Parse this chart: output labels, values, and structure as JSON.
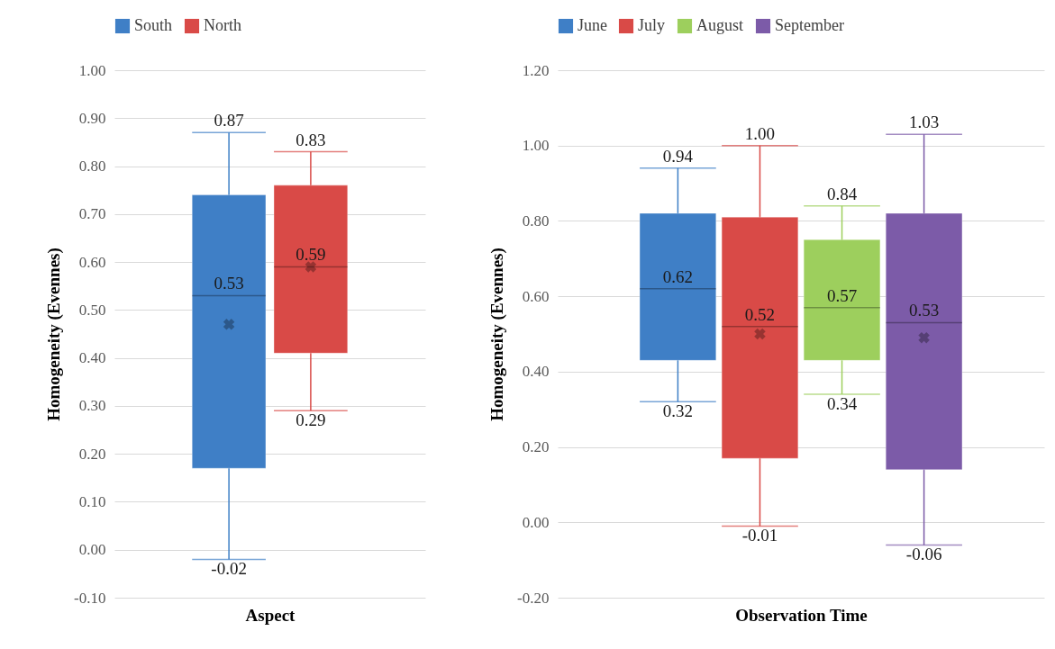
{
  "chart_data": [
    {
      "type": "box",
      "xlabel": "Aspect",
      "ylabel": "Homogeneity (Evennes)",
      "categories": [
        null
      ],
      "ylim": [
        -0.1,
        1.0
      ],
      "yticks": [
        {
          "value": -0.1,
          "label": "-0.10"
        },
        {
          "value": 0,
          "label": "0.00"
        },
        {
          "value": 0.1,
          "label": "0.10"
        },
        {
          "value": 0.2,
          "label": "0.20"
        },
        {
          "value": 0.3,
          "label": "0.30"
        },
        {
          "value": 0.4,
          "label": "0.40"
        },
        {
          "value": 0.5,
          "label": "0.50"
        },
        {
          "value": 0.6,
          "label": "0.60"
        },
        {
          "value": 0.7,
          "label": "0.70"
        },
        {
          "value": 0.8,
          "label": "0.80"
        },
        {
          "value": 0.9,
          "label": "0.90"
        },
        {
          "value": 1.0,
          "label": "1.00"
        }
      ],
      "grid": "y",
      "legend": "top",
      "series": [
        {
          "name": "South",
          "color": "#3f7fc6",
          "boxes": [
            {
              "low": -0.02,
              "q1": 0.17,
              "median": 0.53,
              "q3": 0.74,
              "high": 0.87,
              "mean": 0.47
            }
          ]
        },
        {
          "name": "North",
          "color": "#d94a47",
          "boxes": [
            {
              "low": 0.29,
              "q1": 0.41,
              "median": 0.59,
              "q3": 0.76,
              "high": 0.83,
              "mean": 0.59
            }
          ]
        }
      ],
      "annotations": [
        {
          "text": "0.87",
          "y": 0.87
        },
        {
          "text": "0.53",
          "y": 0.53
        },
        {
          "text": "-0.02",
          "y": -0.02
        },
        {
          "text": "0.83",
          "y": 0.83
        },
        {
          "text": "0.59",
          "y": 0.59
        },
        {
          "text": "0.29",
          "y": 0.29
        }
      ]
    },
    {
      "type": "box",
      "xlabel": "Observation Time",
      "ylabel": "Homogeneity (Evennes)",
      "categories": [
        null
      ],
      "ylim": [
        -0.2,
        1.2
      ],
      "yticks": [
        {
          "value": -0.2,
          "label": "-0.20"
        },
        {
          "value": 0,
          "label": "0.00"
        },
        {
          "value": 0.2,
          "label": "0.20"
        },
        {
          "value": 0.4,
          "label": "0.40"
        },
        {
          "value": 0.6,
          "label": "0.60"
        },
        {
          "value": 0.8,
          "label": "0.80"
        },
        {
          "value": 1.0,
          "label": "1.00"
        },
        {
          "value": 1.2,
          "label": "1.20"
        }
      ],
      "grid": "y",
      "legend": "top",
      "series": [
        {
          "name": "June",
          "color": "#3f7fc6",
          "boxes": [
            {
              "low": 0.32,
              "q1": 0.43,
              "median": 0.62,
              "q3": 0.82,
              "high": 0.94
            }
          ]
        },
        {
          "name": "July",
          "color": "#d94a47",
          "boxes": [
            {
              "low": -0.01,
              "q1": 0.17,
              "median": 0.52,
              "q3": 0.81,
              "high": 1.0,
              "mean": 0.5
            }
          ]
        },
        {
          "name": "August",
          "color": "#9dcf5d",
          "boxes": [
            {
              "low": 0.34,
              "q1": 0.43,
              "median": 0.57,
              "q3": 0.75,
              "high": 0.84
            }
          ]
        },
        {
          "name": "September",
          "color": "#7c5ba8",
          "boxes": [
            {
              "low": -0.06,
              "q1": 0.14,
              "median": 0.53,
              "q3": 0.82,
              "high": 1.03,
              "mean": 0.49
            }
          ]
        }
      ],
      "annotations": [
        {
          "text": "0.94",
          "y": 0.94
        },
        {
          "text": "0.62",
          "y": 0.62
        },
        {
          "text": "0.32",
          "y": 0.32
        },
        {
          "text": "1.00",
          "y": 1.0
        },
        {
          "text": "0.52",
          "y": 0.52
        },
        {
          "text": "-0.01",
          "y": -0.01
        },
        {
          "text": "0.84",
          "y": 0.84
        },
        {
          "text": "0.57",
          "y": 0.57
        },
        {
          "text": "0.34",
          "y": 0.34
        },
        {
          "text": "1.03",
          "y": 1.03
        },
        {
          "text": "0.53",
          "y": 0.53
        },
        {
          "text": "-0.06",
          "y": -0.06
        }
      ]
    }
  ]
}
